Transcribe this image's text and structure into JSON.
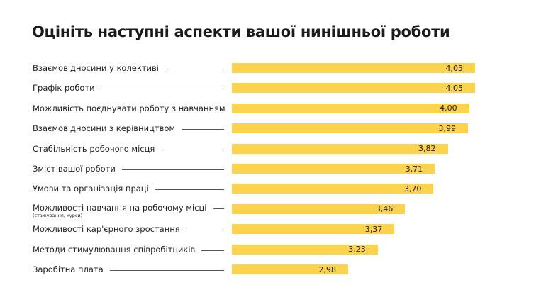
{
  "chart_data": {
    "type": "bar",
    "orientation": "horizontal",
    "title": "Оцініть наступні аспекти вашої нинішньої роботи",
    "xlabel": "",
    "ylabel": "",
    "xlim": [
      2.0,
      4.1
    ],
    "grid": false,
    "bar_color": "#fdd24c",
    "categories": [
      "Взаємовідносини у колективі",
      "Графік роботи",
      "Можливість поєднувати роботу з навчанням",
      "Взаємовідносини з керівництвом",
      "Стабільність робочого місця",
      "Зміст вашої роботи",
      "Умови та організація праці",
      "Можливості навчання на робочому місці",
      "Можливості кар'єрного зростання",
      "Методи стимулювання співробітників",
      "Заробітна плата"
    ],
    "sublabels": [
      "",
      "",
      "",
      "",
      "",
      "",
      "",
      "(стажування, курси)",
      "",
      "",
      ""
    ],
    "values": [
      4.05,
      4.05,
      4.0,
      3.99,
      3.82,
      3.71,
      3.7,
      3.46,
      3.37,
      3.23,
      2.98
    ],
    "value_labels": [
      "4,05",
      "4,05",
      "4,00",
      "3,99",
      "3,82",
      "3,71",
      "3,70",
      "3,46",
      "3,37",
      "3,23",
      "2,98"
    ]
  }
}
